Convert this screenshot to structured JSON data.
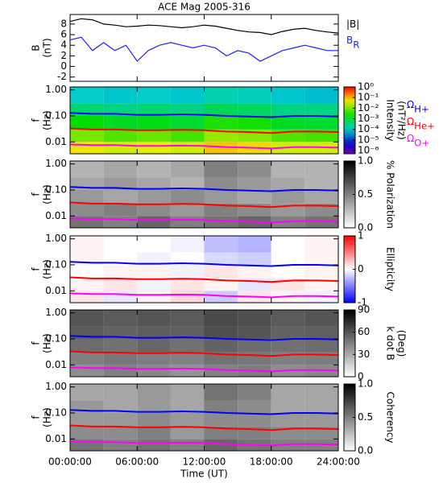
{
  "chart_data": [
    {
      "type": "line",
      "title": "ACE Mag 2005-316",
      "ylabel": [
        "B",
        "(nT)"
      ],
      "x": [
        0,
        1,
        2,
        3,
        4,
        5,
        6,
        7,
        8,
        9,
        10,
        11,
        12,
        13,
        14,
        15,
        16,
        17,
        18,
        19,
        20,
        21,
        22,
        23,
        24
      ],
      "xlim": [
        0,
        24
      ],
      "ylim": [
        -2.8,
        9.8
      ],
      "yticks": [
        -2,
        0,
        2,
        4,
        6,
        8
      ],
      "series": [
        {
          "name": "|B|",
          "color": "#000000",
          "values": [
            8.5,
            9,
            8.8,
            8,
            7.8,
            7.5,
            7.6,
            7.8,
            7.7,
            7.5,
            7.3,
            7.5,
            7.8,
            7.6,
            7.2,
            6.8,
            6.5,
            6.4,
            6.0,
            6.6,
            7.0,
            7.2,
            6.8,
            6.5,
            6.3
          ]
        },
        {
          "name": "B",
          "subscript": "R",
          "color": "#1f1fff",
          "values": [
            5,
            5.5,
            3,
            4.5,
            3,
            4,
            1,
            3,
            4,
            4.5,
            4,
            3.5,
            4,
            3.5,
            2,
            3,
            2.5,
            1,
            2,
            3,
            3.5,
            4,
            3.5,
            3,
            3
          ]
        }
      ]
    },
    {
      "type": "heatmap",
      "ylabel": [
        "f",
        "(Hz)"
      ],
      "ylog": true,
      "ylim": [
        0.0035,
        1.3
      ],
      "yticks": [
        {
          "value": 1,
          "label": "1.00"
        },
        {
          "value": 0.1,
          "label": "0.10"
        },
        0.01
      ],
      "xlim": [
        0,
        24
      ],
      "x_bins": [
        0,
        3,
        6,
        9,
        12,
        15,
        18,
        21,
        24
      ],
      "y_bins": [
        0.0035,
        0.01,
        0.03,
        0.1,
        0.3,
        1.3
      ],
      "colormap": "rainbow",
      "zlog": true,
      "zlim": [
        5e-07,
        1
      ],
      "zlabel": [
        "Intensity",
        "(nT²/Hz)"
      ],
      "zticks": [
        {
          "value": 1,
          "label": "10⁰"
        },
        {
          "value": 0.1,
          "label": "10⁻¹"
        },
        {
          "value": 0.01,
          "label": "10⁻²"
        },
        {
          "value": 0.001,
          "label": "10⁻³"
        },
        {
          "value": 0.0001,
          "label": "10⁻⁴"
        },
        {
          "value": 1e-05,
          "label": "10⁻⁵"
        },
        {
          "value": 1e-06,
          "label": "10⁻⁶"
        }
      ],
      "z": [
        [
          0.05,
          0.03,
          0.04,
          0.03,
          0.08,
          0.06,
          0.03,
          0.03
        ],
        [
          0.01,
          0.006,
          0.008,
          0.005,
          0.015,
          0.012,
          0.006,
          0.005
        ],
        [
          0.002,
          0.0012,
          0.0015,
          0.001,
          0.003,
          0.0025,
          0.0012,
          0.001
        ],
        [
          0.0004,
          0.0003,
          0.0004,
          0.0003,
          0.0006,
          0.0005,
          0.0003,
          0.0003
        ],
        [
          0.0001,
          8e-05,
          0.0001,
          8e-05,
          0.00015,
          0.00012,
          8e-05,
          7e-05
        ]
      ],
      "gyro_x": [
        0,
        2,
        4,
        6,
        8,
        10,
        12,
        14,
        16,
        18,
        20,
        22,
        24
      ],
      "series": [
        {
          "name": "Ω",
          "subscript": "H+",
          "color": "#0000ff",
          "values": [
            0.13,
            0.12,
            0.12,
            0.11,
            0.11,
            0.115,
            0.11,
            0.1,
            0.095,
            0.09,
            0.1,
            0.1,
            0.095
          ]
        },
        {
          "name": "Ω",
          "subscript": "He+",
          "color": "#ff0000",
          "values": [
            0.033,
            0.03,
            0.03,
            0.028,
            0.028,
            0.029,
            0.028,
            0.025,
            0.024,
            0.022,
            0.025,
            0.025,
            0.024
          ]
        },
        {
          "name": "Ω",
          "subscript": "O+",
          "color": "#ff00ff",
          "values": [
            0.008,
            0.0075,
            0.0075,
            0.007,
            0.007,
            0.0072,
            0.007,
            0.0063,
            0.006,
            0.0056,
            0.0063,
            0.0063,
            0.006
          ]
        }
      ]
    },
    {
      "type": "heatmap",
      "ylabel": [
        "f",
        "(Hz)"
      ],
      "ylog": true,
      "ylim": [
        0.0035,
        1.3
      ],
      "yticks": [
        {
          "value": 1,
          "label": "1.00"
        },
        {
          "value": 0.1,
          "label": "0.10"
        },
        0.01
      ],
      "xlim": [
        0,
        24
      ],
      "x_bins": [
        0,
        3,
        6,
        9,
        12,
        15,
        18,
        21,
        24
      ],
      "y_bins": [
        0.0035,
        0.01,
        0.03,
        0.1,
        0.3,
        1.3
      ],
      "colormap": "gray_r",
      "zlim": [
        0,
        1
      ],
      "zlabel": [
        "% Polarization"
      ],
      "zticks": [
        {
          "value": 0,
          "label": "0.0"
        },
        {
          "value": 0.5,
          "label": "0.5"
        },
        {
          "value": 1,
          "label": "1.0"
        }
      ],
      "z": [
        [
          0.55,
          0.5,
          0.6,
          0.5,
          0.55,
          0.6,
          0.5,
          0.55
        ],
        [
          0.45,
          0.5,
          0.45,
          0.4,
          0.5,
          0.45,
          0.4,
          0.45
        ],
        [
          0.4,
          0.35,
          0.4,
          0.45,
          0.4,
          0.35,
          0.4,
          0.35
        ],
        [
          0.35,
          0.4,
          0.35,
          0.3,
          0.45,
          0.4,
          0.35,
          0.3
        ],
        [
          0.3,
          0.35,
          0.3,
          0.35,
          0.5,
          0.45,
          0.3,
          0.3
        ]
      ]
    },
    {
      "type": "heatmap",
      "ylabel": [
        "f",
        "(Hz)"
      ],
      "ylog": true,
      "ylim": [
        0.0035,
        1.3
      ],
      "yticks": [
        {
          "value": 1,
          "label": "1.00"
        },
        {
          "value": 0.1,
          "label": "0.10"
        },
        0.01
      ],
      "xlim": [
        0,
        24
      ],
      "x_bins": [
        0,
        3,
        6,
        9,
        12,
        15,
        18,
        21,
        24
      ],
      "y_bins": [
        0.0035,
        0.01,
        0.03,
        0.1,
        0.3,
        1.3
      ],
      "colormap": "bwr",
      "zlim": [
        -1,
        1
      ],
      "zlabel": [
        "Ellipticity"
      ],
      "zticks": [
        -1,
        0,
        1
      ],
      "z": [
        [
          0.1,
          -0.1,
          0.05,
          0.15,
          -0.2,
          0.1,
          0.05,
          -0.05
        ],
        [
          0.05,
          0.1,
          -0.05,
          0.1,
          0.05,
          -0.1,
          0.1,
          0.05
        ],
        [
          0,
          0.05,
          0.05,
          -0.05,
          0.1,
          0.05,
          0,
          0.05
        ],
        [
          0.05,
          0,
          -0.05,
          0,
          -0.15,
          -0.2,
          0,
          0.05
        ],
        [
          0.05,
          0,
          0,
          -0.05,
          -0.25,
          -0.3,
          0,
          0.05
        ]
      ]
    },
    {
      "type": "heatmap",
      "ylabel": [
        "f",
        "(Hz)"
      ],
      "ylog": true,
      "ylim": [
        0.0035,
        1.3
      ],
      "yticks": [
        {
          "value": 1,
          "label": "1.00"
        },
        {
          "value": 0.1,
          "label": "0.10"
        },
        0.01
      ],
      "xlim": [
        0,
        24
      ],
      "x_bins": [
        0,
        3,
        6,
        9,
        12,
        15,
        18,
        21,
        24
      ],
      "y_bins": [
        0.0035,
        0.01,
        0.03,
        0.1,
        0.3,
        1.3
      ],
      "colormap": "gray_r",
      "zlim": [
        0,
        90
      ],
      "zlabel": [
        "k dot B",
        "(Deg)"
      ],
      "zticks": [
        0,
        30,
        60,
        90
      ],
      "z": [
        [
          40,
          45,
          42,
          38,
          44,
          46,
          40,
          42
        ],
        [
          45,
          48,
          46,
          44,
          50,
          48,
          45,
          46
        ],
        [
          52,
          50,
          54,
          50,
          55,
          52,
          50,
          52
        ],
        [
          58,
          55,
          57,
          56,
          62,
          60,
          55,
          56
        ],
        [
          60,
          58,
          60,
          58,
          64,
          62,
          58,
          60
        ]
      ]
    },
    {
      "type": "heatmap",
      "ylabel": [
        "f",
        "(Hz)"
      ],
      "ylog": true,
      "ylim": [
        0.0035,
        1.3
      ],
      "yticks": [
        {
          "value": 1,
          "label": "1.00"
        },
        {
          "value": 0.1,
          "label": "0.10"
        },
        0.01
      ],
      "xlim": [
        0,
        24
      ],
      "x_bins": [
        0,
        3,
        6,
        9,
        12,
        15,
        18,
        21,
        24
      ],
      "y_bins": [
        0.0035,
        0.01,
        0.03,
        0.1,
        0.3,
        1.3
      ],
      "colormap": "gray_r",
      "zlim": [
        0,
        1
      ],
      "zlabel": [
        "Coherency"
      ],
      "zticks": [
        {
          "value": 0,
          "label": "0.0"
        },
        {
          "value": 0.5,
          "label": "0.5"
        },
        {
          "value": 1,
          "label": "1.0"
        }
      ],
      "z": [
        [
          0.55,
          0.5,
          0.55,
          0.5,
          0.6,
          0.55,
          0.5,
          0.5
        ],
        [
          0.45,
          0.45,
          0.5,
          0.4,
          0.5,
          0.5,
          0.45,
          0.45
        ],
        [
          0.4,
          0.4,
          0.45,
          0.4,
          0.45,
          0.45,
          0.4,
          0.4
        ],
        [
          0.4,
          0.35,
          0.4,
          0.35,
          0.5,
          0.45,
          0.35,
          0.35
        ],
        [
          0.35,
          0.35,
          0.4,
          0.35,
          0.55,
          0.5,
          0.35,
          0.35
        ]
      ],
      "xticks": [
        {
          "value": 0,
          "label": "00:00:00"
        },
        {
          "value": 6,
          "label": "06:00:00"
        },
        {
          "value": 12,
          "label": "12:00:00"
        },
        {
          "value": 18,
          "label": "18:00:00"
        },
        {
          "value": 24,
          "label": "24:00:00"
        }
      ],
      "xlabel": "Time (UT)"
    }
  ]
}
